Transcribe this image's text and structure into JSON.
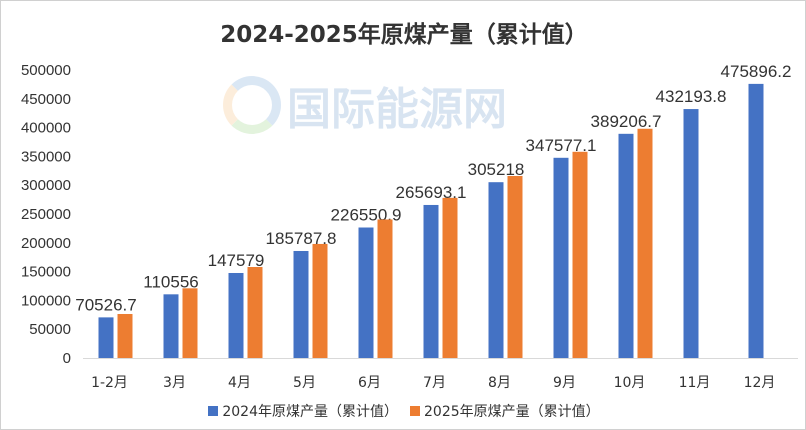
{
  "chart_data": {
    "type": "bar",
    "title": "2024-2025年原煤产量（累计值）",
    "categories": [
      "1-2月",
      "3月",
      "4月",
      "5月",
      "6月",
      "7月",
      "8月",
      "9月",
      "10月",
      "11月",
      "12月"
    ],
    "series": [
      {
        "name": "2024年原煤产量（累计值）",
        "color": "#4472c4",
        "values": [
          70526.7,
          110556,
          147579,
          185787.8,
          226550.9,
          265693.1,
          305218,
          347577.1,
          389206.7,
          432193.8,
          475896.2
        ],
        "labels": [
          "70526.7",
          "110556",
          "147579",
          "185787.8",
          "226550.9",
          "265693.1",
          "305218",
          "347577.1",
          "389206.7",
          "432193.8",
          "475896.2"
        ]
      },
      {
        "name": "2025年原煤产量（累计值）",
        "color": "#ed7d31",
        "values": [
          76400,
          121000,
          158000,
          198000,
          240500,
          278000,
          316000,
          358000,
          398000,
          null,
          null
        ]
      }
    ],
    "yticks": [
      "0",
      "50000",
      "100000",
      "150000",
      "200000",
      "250000",
      "300000",
      "350000",
      "400000",
      "450000",
      "500000"
    ],
    "ylim": [
      0,
      500000
    ],
    "xlabel": "",
    "ylabel": "",
    "grid": false,
    "legend": "bottom"
  },
  "watermark": "国际能源网"
}
